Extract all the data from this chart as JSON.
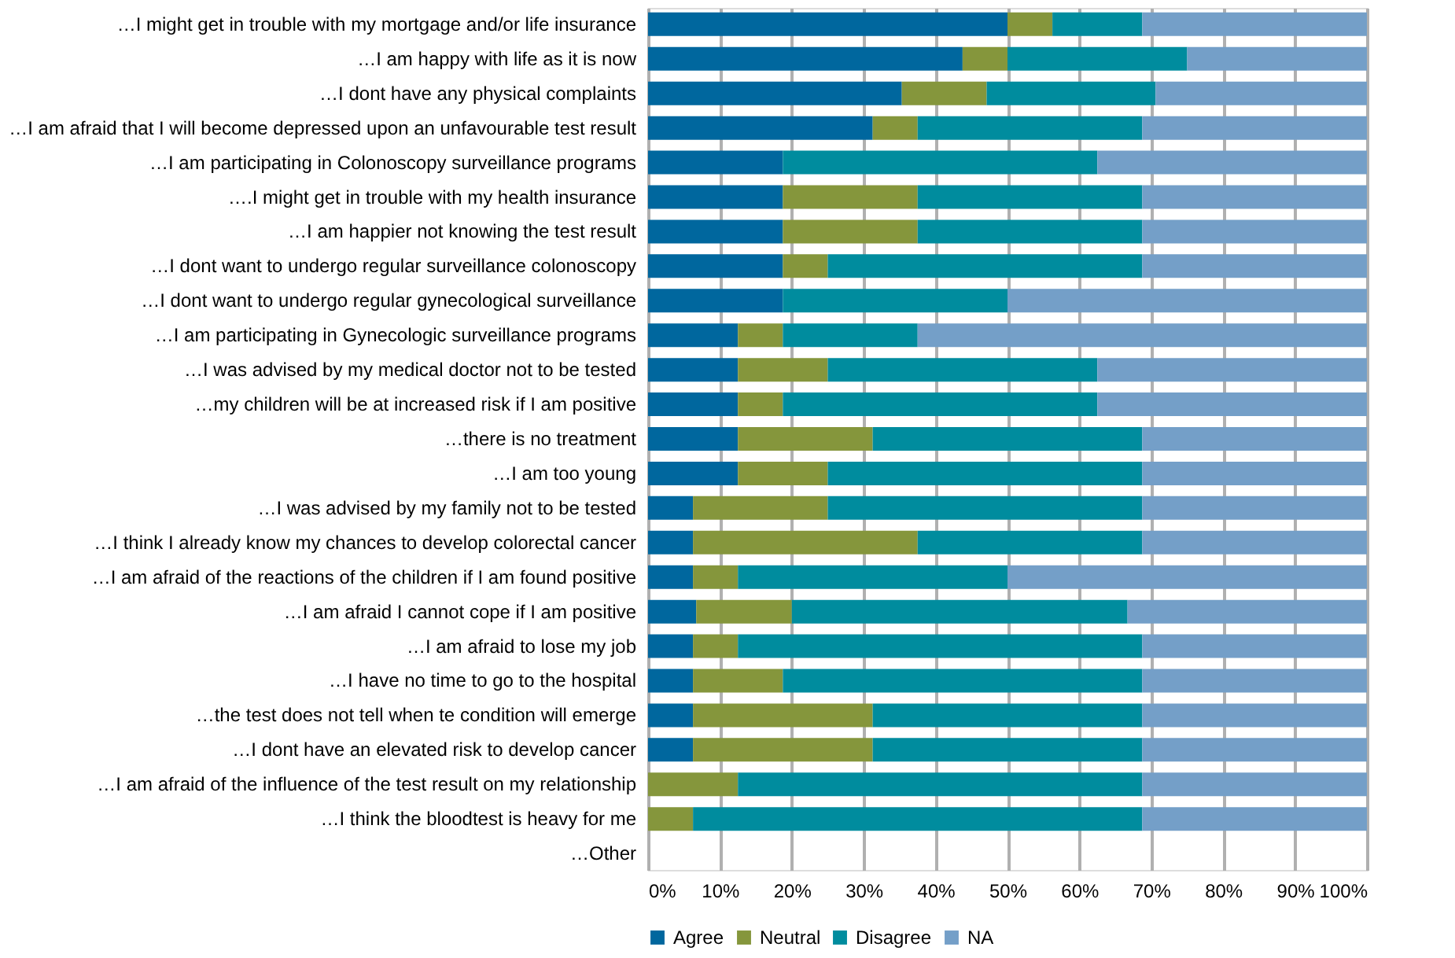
{
  "chart_data": {
    "type": "bar",
    "orientation": "horizontal",
    "stacked": true,
    "categories": [
      "…I might get in trouble with my mortgage and/or life insurance",
      "…I am happy with life as it is now",
      "…I dont have any physical complaints",
      "…I am afraid that I will become depressed upon an unfavourable test result",
      "…I am participating in Colonoscopy surveillance programs",
      "….I might get in trouble with my health insurance",
      "…I am happier not knowing the test result",
      "…I dont want to undergo regular surveillance colonoscopy",
      "…I dont want to undergo regular gynecological surveillance",
      "…I am participating in Gynecologic surveillance programs",
      "…I was advised by my medical doctor not to be tested",
      "…my children will be at increased risk if I am positive",
      "…there is no treatment",
      "…I am too young",
      "…I was advised by my family not to be tested",
      "…I think I already know my chances to develop colorectal cancer",
      "…I am afraid of the reactions of the children if I am found positive",
      "…I am afraid I cannot cope if I am positive",
      "…I am afraid to lose my job",
      "…I have no time to go to the hospital",
      "…the test does not tell when te condition will emerge",
      "…I dont have an elevated risk to develop cancer",
      "…I am afraid of the influence of the test result on my relationship",
      "…I think the bloodtest is heavy for me",
      "…Other"
    ],
    "series": [
      {
        "name": "Agree",
        "color": "#00679e",
        "values": [
          50,
          43.75,
          35.3,
          31.25,
          18.75,
          18.75,
          18.75,
          18.75,
          18.75,
          12.5,
          12.5,
          12.5,
          12.5,
          12.5,
          6.25,
          6.25,
          6.25,
          6.7,
          6.25,
          6.25,
          6.25,
          6.25,
          0,
          0,
          null
        ]
      },
      {
        "name": "Neutral",
        "color": "#85963c",
        "values": [
          6.25,
          6.25,
          11.8,
          6.25,
          0,
          18.75,
          18.75,
          6.25,
          0,
          6.25,
          12.5,
          6.25,
          18.75,
          12.5,
          18.75,
          31.25,
          6.25,
          13.3,
          6.25,
          12.5,
          25,
          25,
          12.5,
          6.25,
          null
        ]
      },
      {
        "name": "Disagree",
        "color": "#008c9e",
        "values": [
          12.5,
          25,
          23.5,
          31.25,
          43.75,
          31.25,
          31.25,
          43.75,
          31.25,
          18.75,
          37.5,
          43.75,
          37.5,
          43.75,
          43.75,
          31.25,
          37.5,
          46.7,
          56.25,
          50,
          37.5,
          37.5,
          56.25,
          62.5,
          null
        ]
      },
      {
        "name": "NA",
        "color": "#749fc8",
        "values": [
          31.25,
          25,
          29.4,
          31.25,
          37.5,
          31.25,
          31.25,
          31.25,
          50,
          62.5,
          37.5,
          37.5,
          31.25,
          31.25,
          31.25,
          31.25,
          50,
          33.3,
          31.25,
          31.25,
          31.25,
          31.25,
          31.25,
          31.25,
          null
        ]
      }
    ],
    "xlim": [
      0,
      100
    ],
    "xticks": [
      {
        "value": 0,
        "label": "0%"
      },
      {
        "value": 10,
        "label": "10%"
      },
      {
        "value": 20,
        "label": "20%"
      },
      {
        "value": 30,
        "label": "30%"
      },
      {
        "value": 40,
        "label": "40%"
      },
      {
        "value": 50,
        "label": "50%"
      },
      {
        "value": 60,
        "label": "60%"
      },
      {
        "value": 70,
        "label": "70%"
      },
      {
        "value": 80,
        "label": "80%"
      },
      {
        "value": 90,
        "label": "90%"
      },
      {
        "value": 100,
        "label": "100%"
      }
    ],
    "grid": "x",
    "legend": "bottom"
  }
}
